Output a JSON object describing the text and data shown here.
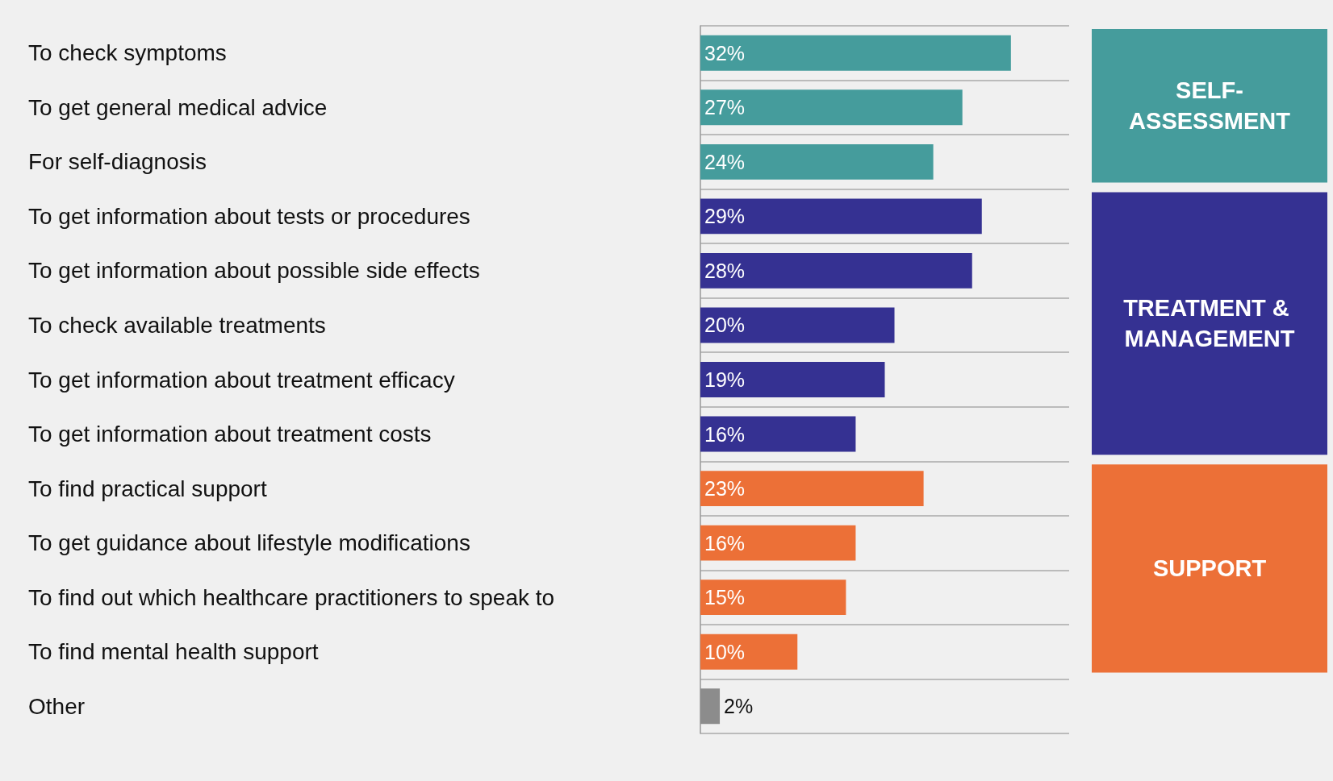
{
  "chart_data": {
    "type": "bar",
    "orientation": "horizontal",
    "stacked": true,
    "grid": "y",
    "legend": "right",
    "tick_labels": "y",
    "xlim": [
      0,
      38
    ],
    "categories": [
      "To check symptoms",
      "To get general medical advice",
      "For self-diagnosis",
      "To get information about tests or procedures",
      "To get information about possible side effects",
      "To check available treatments",
      "To get information about treatment efficacy",
      "To get information about treatment costs",
      "To find practical support",
      "To get guidance about lifestyle modifications",
      "To find out which healthcare practitioners to speak to",
      "To find mental health support",
      "Other"
    ],
    "series": [
      {
        "name": "SELF-ASSESSMENT",
        "color": "#459c9c",
        "values": [
          32,
          27,
          24,
          null,
          null,
          null,
          null,
          null,
          null,
          null,
          null,
          null,
          null
        ],
        "value_labels": [
          "32%",
          "27%",
          "24%",
          null,
          null,
          null,
          null,
          null,
          null,
          null,
          null,
          null,
          null
        ]
      },
      {
        "name": "TREATMENT & MANAGEMENT",
        "color": "#353192",
        "values": [
          null,
          null,
          null,
          29,
          28,
          20,
          19,
          16,
          null,
          null,
          null,
          null,
          null
        ],
        "value_labels": [
          null,
          null,
          null,
          "29%",
          "28%",
          "20%",
          "19%",
          "16%",
          null,
          null,
          null,
          null,
          null
        ]
      },
      {
        "name": "SUPPORT",
        "color": "#ec7037",
        "values": [
          null,
          null,
          null,
          null,
          null,
          null,
          null,
          null,
          23,
          16,
          15,
          10,
          null
        ],
        "value_labels": [
          null,
          null,
          null,
          null,
          null,
          null,
          null,
          null,
          "23%",
          "16%",
          "15%",
          "10%",
          null
        ]
      },
      {
        "color": "#8c8c8c",
        "values": [
          null,
          null,
          null,
          null,
          null,
          null,
          null,
          null,
          null,
          null,
          null,
          null,
          2
        ],
        "value_labels": [
          null,
          null,
          null,
          null,
          null,
          null,
          null,
          null,
          null,
          null,
          null,
          null,
          "2%"
        ]
      }
    ]
  }
}
